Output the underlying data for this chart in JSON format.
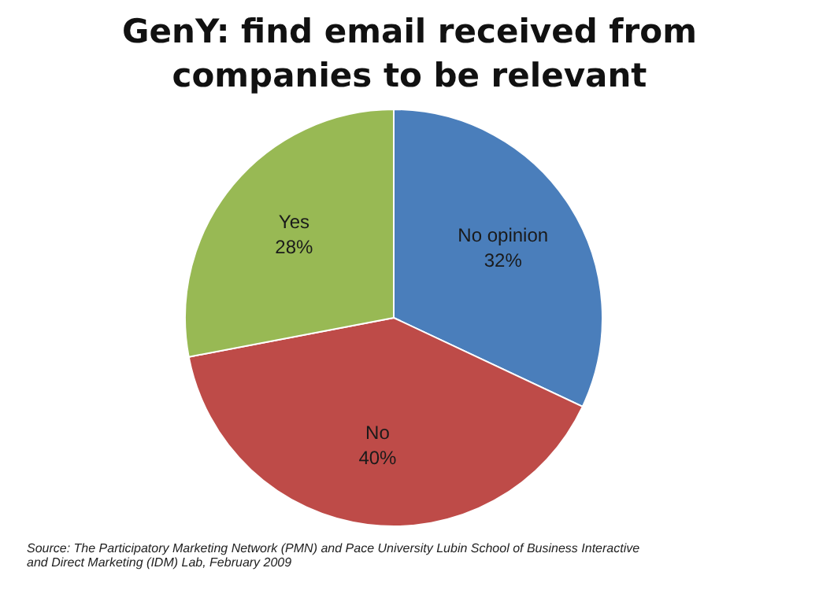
{
  "chart_data": {
    "type": "pie",
    "title": "GenY: find email received from companies to be relevant",
    "categories": [
      "No opinion",
      "No",
      "Yes"
    ],
    "values": [
      32,
      40,
      28
    ],
    "value_labels": [
      "32%",
      "40%",
      "28%"
    ],
    "colors": [
      "#4a7ebb",
      "#be4b48",
      "#98b954"
    ],
    "legend": false,
    "annotations": [
      "Source: The Participatory Marketing Network (PMN) and Pace University Lubin School of Business Interactive and Direct Marketing (IDM) Lab, February 2009"
    ]
  }
}
